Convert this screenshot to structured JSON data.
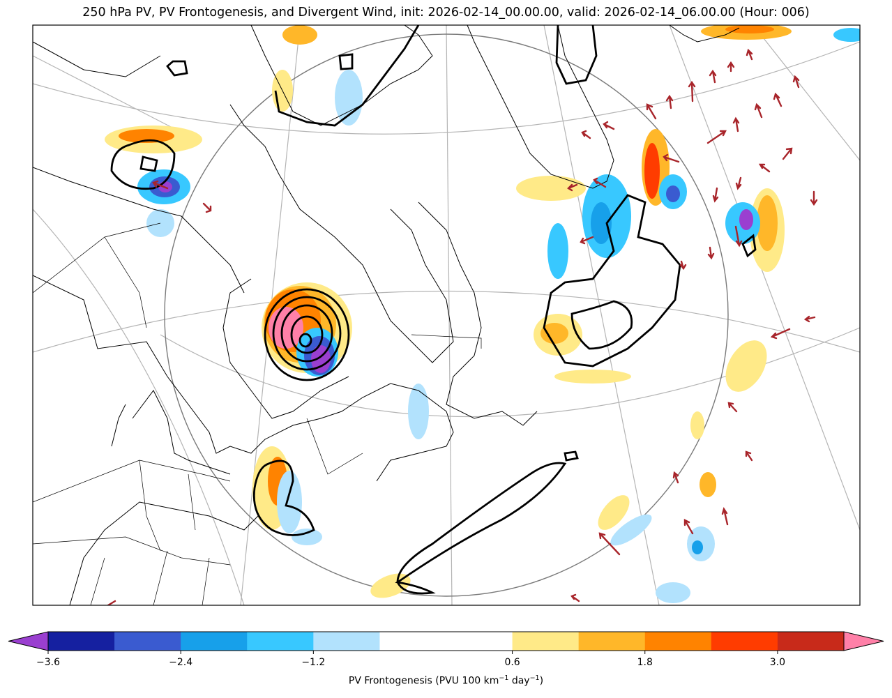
{
  "title": "250 hPa PV, PV Frontogenesis, and Divergent Wind, init: 2026-02-14_00.00.00, valid: 2026-02-14_06.00.00 (Hour: 006)",
  "chart_data": {
    "type": "map",
    "title": "250 hPa PV, PV Frontogenesis, and Divergent Wind, init: 2026-02-14_00.00.00, valid: 2026-02-14_06.00.00 (Hour: 006)",
    "fields": [
      "PV (black contours)",
      "PV Frontogenesis (filled)",
      "Divergent Wind (red arrows)"
    ],
    "colorbar": {
      "label_text": "PV Frontogenesis (PVU 100 km",
      "label_exp1": "−1",
      "label_mid": " day",
      "label_exp2": "−1",
      "label_end": ")",
      "levels": [
        -3.6,
        -3.0,
        -2.4,
        -1.8,
        -1.2,
        -0.6,
        0.6,
        1.2,
        1.8,
        2.4,
        3.0,
        3.6
      ],
      "colors": [
        "#1520a0",
        "#3a5bd0",
        "#17a0ea",
        "#38c8ff",
        "#b2e2fd",
        "#ffffff",
        "#ffea88",
        "#ffb729",
        "#ff8300",
        "#ff3c00",
        "#c82a1a"
      ],
      "under_color": "#9a3fd0",
      "over_color": "#ff80a8",
      "tick_labels": [
        "−3.6",
        "−2.4",
        "−1.2",
        "0.6",
        "1.8",
        "3.0"
      ],
      "tick_values": [
        -3.6,
        -2.4,
        -1.2,
        0.6,
        1.8,
        3.0
      ]
    }
  }
}
